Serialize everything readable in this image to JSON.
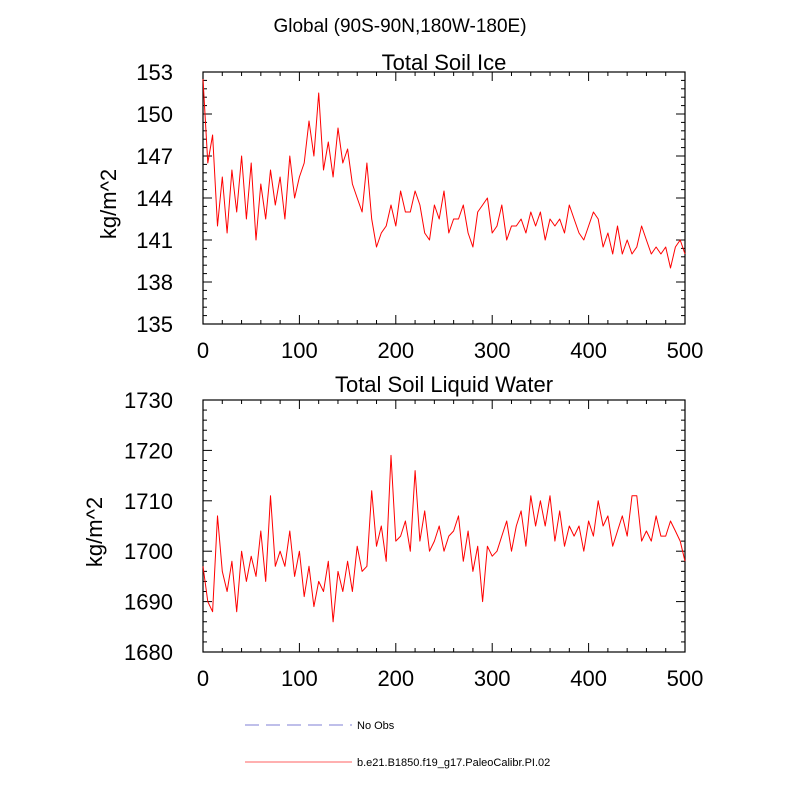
{
  "figure": {
    "suptitle": "Global (90S-90N,180W-180E)"
  },
  "colors": {
    "series": "#ff0000",
    "obs": "#9999dd",
    "legend_series": "#ff8080",
    "axis": "#000000"
  },
  "legend": {
    "items": [
      {
        "label": "No Obs",
        "style": "dashed"
      },
      {
        "label": "b.e21.B1850.f19_g17.PaleoCalibr.PI.02",
        "style": "solid"
      }
    ]
  },
  "chart_data": [
    {
      "type": "line",
      "title": "Total Soil Ice",
      "xlabel": "",
      "ylabel": "kg/m^2",
      "xlim": [
        0,
        500
      ],
      "ylim": [
        135,
        153
      ],
      "xticks": [
        0,
        100,
        200,
        300,
        400,
        500
      ],
      "xtick_labels": [
        "0",
        "100",
        "200",
        "300",
        "400",
        "500"
      ],
      "yticks": [
        135,
        138,
        141,
        144,
        147,
        150,
        153
      ],
      "ytick_labels": [
        "135",
        "138",
        "141",
        "144",
        "147",
        "150",
        "153"
      ],
      "series": [
        {
          "name": "b.e21.B1850.f19_g17.PaleoCalibr.PI.02",
          "x_start": 0,
          "x_step": 5,
          "values": [
            152.5,
            146.5,
            148.5,
            142.0,
            145.5,
            141.5,
            146.0,
            143.0,
            147.0,
            142.5,
            146.5,
            141.0,
            145.0,
            142.5,
            146.0,
            143.5,
            145.5,
            142.5,
            147.0,
            144.0,
            145.5,
            146.5,
            149.5,
            147.0,
            151.5,
            146.0,
            148.0,
            145.5,
            149.0,
            146.5,
            147.5,
            145.0,
            144.0,
            143.0,
            146.5,
            142.5,
            140.5,
            141.5,
            142.0,
            143.5,
            142.0,
            144.5,
            143.0,
            143.0,
            144.5,
            143.5,
            141.5,
            141.0,
            143.5,
            142.5,
            144.5,
            141.5,
            142.5,
            142.5,
            143.5,
            141.5,
            140.5,
            143.0,
            143.5,
            144.0,
            141.5,
            142.0,
            143.5,
            141.0,
            142.0,
            142.0,
            142.5,
            141.5,
            143.0,
            142.0,
            143.0,
            141.0,
            142.5,
            142.0,
            142.5,
            141.5,
            143.5,
            142.5,
            141.5,
            141.0,
            142.0,
            143.0,
            142.5,
            140.5,
            141.5,
            140.0,
            142.0,
            140.0,
            141.0,
            140.0,
            140.5,
            142.0,
            141.0,
            140.0,
            140.5,
            140.0,
            140.5,
            139.0,
            140.5,
            141.0,
            140.0
          ]
        }
      ]
    },
    {
      "type": "line",
      "title": "Total Soil Liquid Water",
      "xlabel": "",
      "ylabel": "kg/m^2",
      "xlim": [
        0,
        500
      ],
      "ylim": [
        1680,
        1730
      ],
      "xticks": [
        0,
        100,
        200,
        300,
        400,
        500
      ],
      "xtick_labels": [
        "0",
        "100",
        "200",
        "300",
        "400",
        "500"
      ],
      "yticks": [
        1680,
        1690,
        1700,
        1710,
        1720,
        1730
      ],
      "ytick_labels": [
        "1680",
        "1690",
        "1700",
        "1710",
        "1720",
        "1730"
      ],
      "series": [
        {
          "name": "b.e21.B1850.f19_g17.PaleoCalibr.PI.02",
          "x_start": 0,
          "x_step": 5,
          "values": [
            1697,
            1690,
            1688,
            1707,
            1696,
            1692,
            1698,
            1688,
            1700,
            1694,
            1699,
            1695,
            1704,
            1694,
            1711,
            1697,
            1700,
            1697,
            1704,
            1695,
            1700,
            1691,
            1697,
            1689,
            1694,
            1692,
            1698,
            1686,
            1696,
            1692,
            1698,
            1692,
            1701,
            1696,
            1697,
            1712,
            1701,
            1705,
            1698,
            1719,
            1702,
            1703,
            1706,
            1700,
            1716,
            1702,
            1708,
            1700,
            1702,
            1705,
            1700,
            1703,
            1704,
            1707,
            1698,
            1704,
            1696,
            1701,
            1690,
            1701,
            1699,
            1700,
            1703,
            1706,
            1700,
            1705,
            1708,
            1701,
            1711,
            1705,
            1710,
            1705,
            1711,
            1702,
            1708,
            1701,
            1705,
            1703,
            1705,
            1700,
            1706,
            1703,
            1710,
            1705,
            1707,
            1701,
            1704,
            1707,
            1703,
            1711,
            1711,
            1702,
            1704,
            1702,
            1707,
            1703,
            1703,
            1706,
            1704,
            1702,
            1698
          ]
        }
      ]
    }
  ]
}
